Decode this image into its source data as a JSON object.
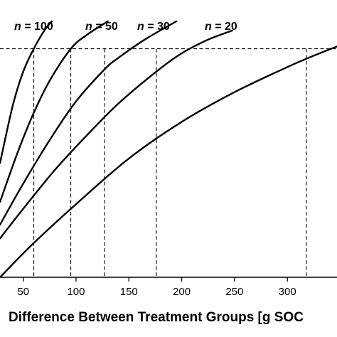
{
  "chart_data": {
    "type": "line",
    "xlabel": "Difference Between Treatment Groups [g SOC",
    "ylabel": "",
    "x_ticks": [
      "50",
      "100",
      "150",
      "200",
      "250",
      "300"
    ],
    "xlim": [
      28,
      347
    ],
    "ylim": [
      0,
      1.12
    ],
    "reference_level": 1.0,
    "series": [
      {
        "name": "n = 100",
        "n_var": "n",
        "n_rest": " = 100",
        "points": [
          [
            28,
            0.5
          ],
          [
            40,
            0.75
          ],
          [
            50,
            0.9
          ],
          [
            60,
            1.0
          ],
          [
            70,
            1.08
          ],
          [
            77,
            1.12
          ]
        ]
      },
      {
        "name": "n = 50",
        "n_var": "n",
        "n_rest": " = 50",
        "points": [
          [
            28,
            0.33
          ],
          [
            45,
            0.55
          ],
          [
            60,
            0.72
          ],
          [
            75,
            0.86
          ],
          [
            95,
            1.0
          ],
          [
            110,
            1.06
          ],
          [
            130,
            1.12
          ]
        ]
      },
      {
        "name": "n = 30",
        "n_var": "n",
        "n_rest": " = 30",
        "points": [
          [
            28,
            0.23
          ],
          [
            50,
            0.41
          ],
          [
            75,
            0.6
          ],
          [
            100,
            0.77
          ],
          [
            127,
            0.91
          ],
          [
            140,
            0.96
          ],
          [
            165,
            1.04
          ],
          [
            195,
            1.12
          ]
        ]
      },
      {
        "name": "n = 20",
        "n_var": "n",
        "n_rest": " = 20",
        "points": [
          [
            28,
            0.17
          ],
          [
            50,
            0.3
          ],
          [
            80,
            0.47
          ],
          [
            110,
            0.62
          ],
          [
            140,
            0.76
          ],
          [
            176,
            0.9
          ],
          [
            200,
            0.98
          ],
          [
            225,
            1.04
          ],
          [
            248,
            1.08
          ]
        ]
      },
      {
        "name": "",
        "n_var": "",
        "n_rest": "",
        "points": [
          [
            28,
            0.0
          ],
          [
            60,
            0.15
          ],
          [
            100,
            0.32
          ],
          [
            150,
            0.52
          ],
          [
            200,
            0.68
          ],
          [
            250,
            0.81
          ],
          [
            300,
            0.92
          ],
          [
            320,
            0.96
          ],
          [
            347,
            1.01
          ]
        ]
      }
    ],
    "guides": [
      60,
      95,
      127,
      176,
      318
    ]
  }
}
